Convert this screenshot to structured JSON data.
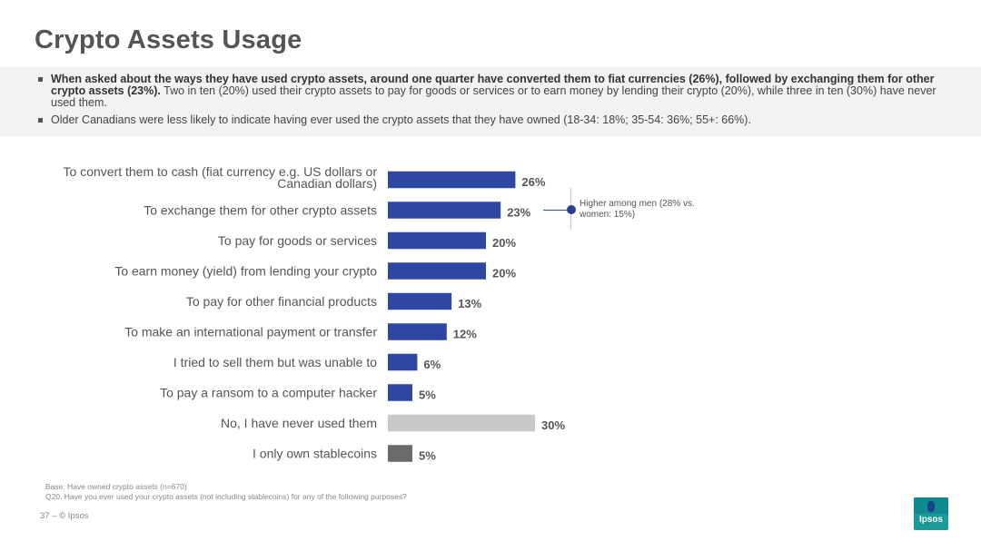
{
  "title": "Crypto Assets Usage",
  "summary": {
    "bullet1_bold": "When asked about the ways they have used crypto assets, around one quarter have converted them to fiat currencies (26%), followed by exchanging them for other crypto assets (23%).",
    "bullet1_rest": " Two in ten (20%) used their crypto assets to pay for goods or services or to earn money by lending their crypto (20%), while three in ten (30%) have never used them.",
    "bullet2": "Older Canadians were less likely to indicate having ever used the crypto assets that they have owned (18-34: 18%; 35-54: 36%; 55+: 66%)."
  },
  "chart_data": {
    "type": "bar",
    "orientation": "horizontal",
    "categories": [
      [
        "To convert them to cash (fiat currency e.g. US dollars or",
        "Canadian dollars)"
      ],
      [
        "To exchange them for other crypto assets"
      ],
      [
        "To pay for goods or services"
      ],
      [
        "To earn money (yield) from lending your crypto"
      ],
      [
        "To pay for other financial products"
      ],
      [
        "To make an international payment or transfer"
      ],
      [
        "I tried to sell them but was unable to"
      ],
      [
        "To pay a ransom to a computer hacker"
      ],
      [
        "No, I have never used them"
      ],
      [
        "I only own stablecoins"
      ]
    ],
    "values": [
      26,
      23,
      20,
      20,
      13,
      12,
      6,
      5,
      30,
      5
    ],
    "value_labels": [
      "26%",
      "23%",
      "20%",
      "20%",
      "13%",
      "12%",
      "6%",
      "5%",
      "30%",
      "5%"
    ],
    "bar_colors": [
      "#2d47a3",
      "#2d47a3",
      "#2d47a3",
      "#2d47a3",
      "#2d47a3",
      "#2d47a3",
      "#2d47a3",
      "#2d47a3",
      "#c8c8c8",
      "#6b6b6b"
    ],
    "xlim": [
      0,
      30
    ],
    "grid": false,
    "annotations": [
      {
        "category_index": 1,
        "text": "Higher among men (28% vs. women: 15%)"
      }
    ]
  },
  "footer": {
    "base": "Base: Have owned crypto assets (n=670)",
    "question": "Q20. Have you ever used your crypto assets (not including stablecoins) for any of the following purposes?",
    "page": "37 –   © Ipsos"
  },
  "logo": {
    "text": "Ipsos"
  }
}
